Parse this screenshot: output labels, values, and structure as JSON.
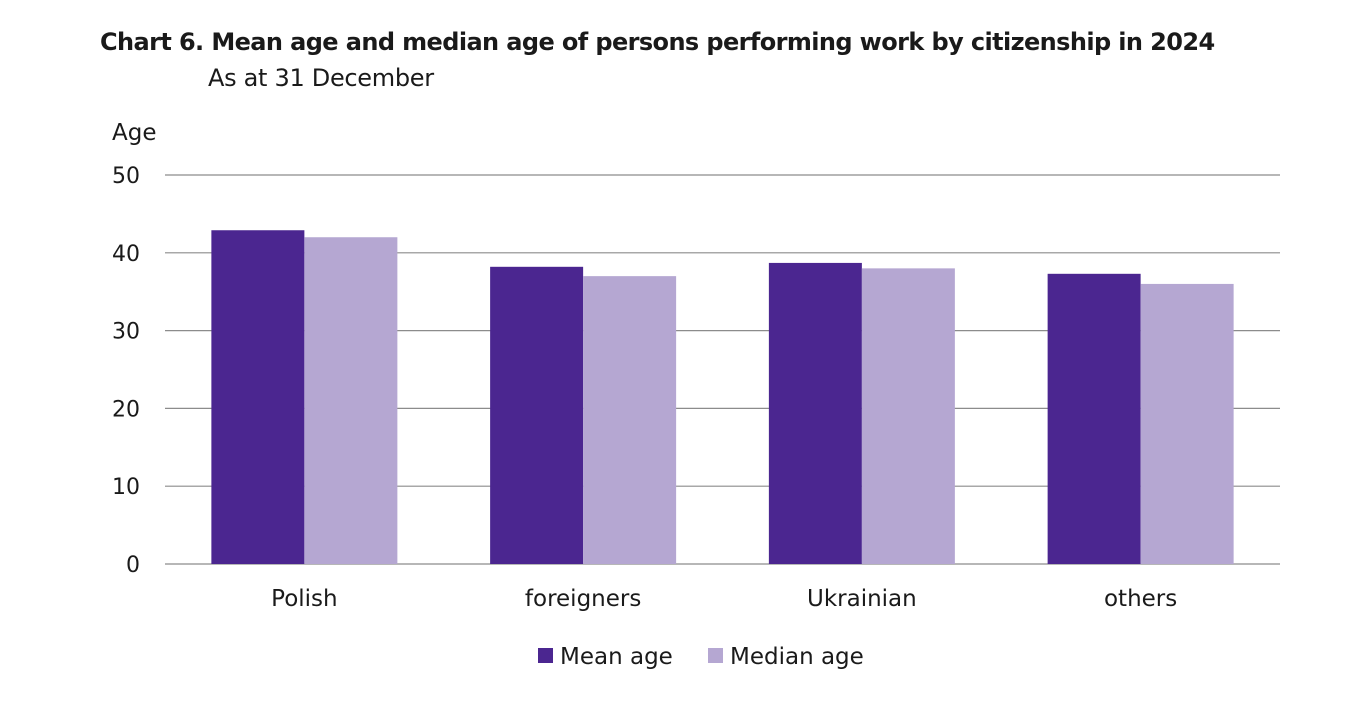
{
  "chart_data": {
    "type": "bar",
    "title": "Chart 6. Mean age and median age of persons performing work by citizenship in 2024",
    "subtitle": "As at 31 December",
    "ylabel": "Age",
    "xlabel": "",
    "ylim": [
      0,
      50
    ],
    "yticks": [
      0,
      10,
      20,
      30,
      40,
      50
    ],
    "grid": true,
    "legend_position": "bottom",
    "categories": [
      "Polish",
      "foreigners",
      "Ukrainian",
      "others"
    ],
    "series": [
      {
        "name": "Mean age",
        "color": "#4b2690",
        "values": [
          42.9,
          38.2,
          38.7,
          37.3
        ]
      },
      {
        "name": "Median age",
        "color": "#b5a7d2",
        "values": [
          42.0,
          37.0,
          38.0,
          36.0
        ]
      }
    ]
  }
}
